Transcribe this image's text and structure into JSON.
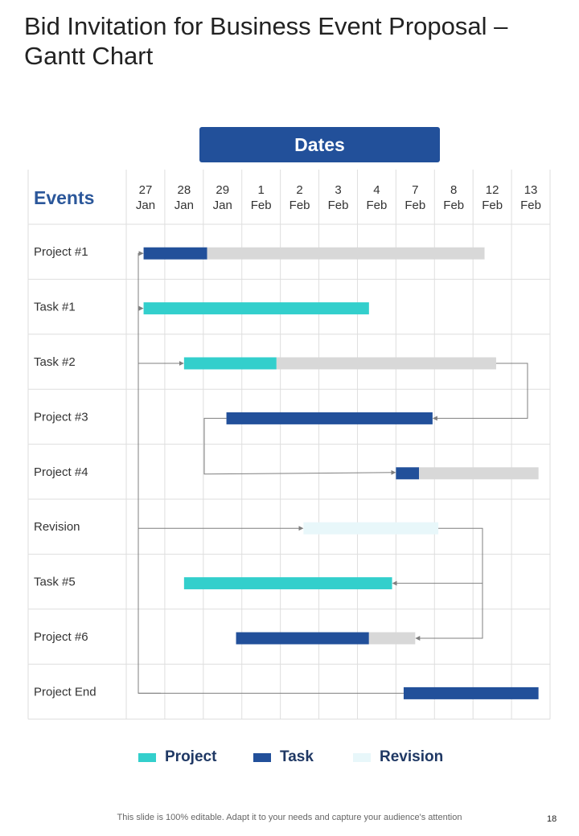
{
  "title": "Bid Invitation for Business Event Proposal – Gantt Chart",
  "dates_header": "Dates",
  "events_header": "Events",
  "colors": {
    "project": "#33cfcc",
    "task": "#22509a",
    "revision": "#e8f7fa",
    "remaining": "#d8d8d8",
    "grid": "#dedede",
    "connector": "#7f7f7f",
    "events_header": "#2b579a"
  },
  "chart_data": {
    "type": "gantt",
    "columns": [
      {
        "day": "27",
        "month": "Jan"
      },
      {
        "day": "28",
        "month": "Jan"
      },
      {
        "day": "29",
        "month": "Jan"
      },
      {
        "day": "1",
        "month": "Feb"
      },
      {
        "day": "2",
        "month": "Feb"
      },
      {
        "day": "3",
        "month": "Feb"
      },
      {
        "day": "4",
        "month": "Feb"
      },
      {
        "day": "7",
        "month": "Feb"
      },
      {
        "day": "8",
        "month": "Feb"
      },
      {
        "day": "12",
        "month": "Feb"
      },
      {
        "day": "13",
        "month": "Feb"
      }
    ],
    "rows": [
      {
        "label": "Project #1",
        "segments": [
          {
            "kind": "task",
            "start": 0.45,
            "end": 2.1
          },
          {
            "kind": "remaining",
            "start": 2.1,
            "end": 9.3
          }
        ]
      },
      {
        "label": "Task #1",
        "segments": [
          {
            "kind": "project",
            "start": 0.45,
            "end": 6.3
          }
        ]
      },
      {
        "label": "Task #2",
        "segments": [
          {
            "kind": "project",
            "start": 1.5,
            "end": 3.9
          },
          {
            "kind": "remaining",
            "start": 3.9,
            "end": 9.6
          }
        ]
      },
      {
        "label": "Project #3",
        "segments": [
          {
            "kind": "task",
            "start": 2.6,
            "end": 7.95
          }
        ]
      },
      {
        "label": "Project #4",
        "segments": [
          {
            "kind": "task",
            "start": 7.0,
            "end": 7.6
          },
          {
            "kind": "remaining",
            "start": 7.6,
            "end": 10.7
          }
        ]
      },
      {
        "label": "Revision",
        "segments": [
          {
            "kind": "revision",
            "start": 4.6,
            "end": 8.1
          }
        ]
      },
      {
        "label": "Task #5",
        "segments": [
          {
            "kind": "project",
            "start": 1.5,
            "end": 6.9
          }
        ]
      },
      {
        "label": "Project #6",
        "segments": [
          {
            "kind": "task",
            "start": 2.85,
            "end": 6.3
          },
          {
            "kind": "remaining",
            "start": 6.3,
            "end": 7.5
          }
        ]
      },
      {
        "label": "Project End",
        "segments": [
          {
            "kind": "task",
            "start": 7.2,
            "end": 10.7
          }
        ]
      }
    ],
    "legend": [
      {
        "label": "Project",
        "kind": "project"
      },
      {
        "label": "Task",
        "kind": "task"
      },
      {
        "label": "Revision",
        "kind": "revision"
      }
    ]
  },
  "footer": "This slide is 100% editable. Adapt it to your needs and capture your audience's attention",
  "page_number": "18"
}
